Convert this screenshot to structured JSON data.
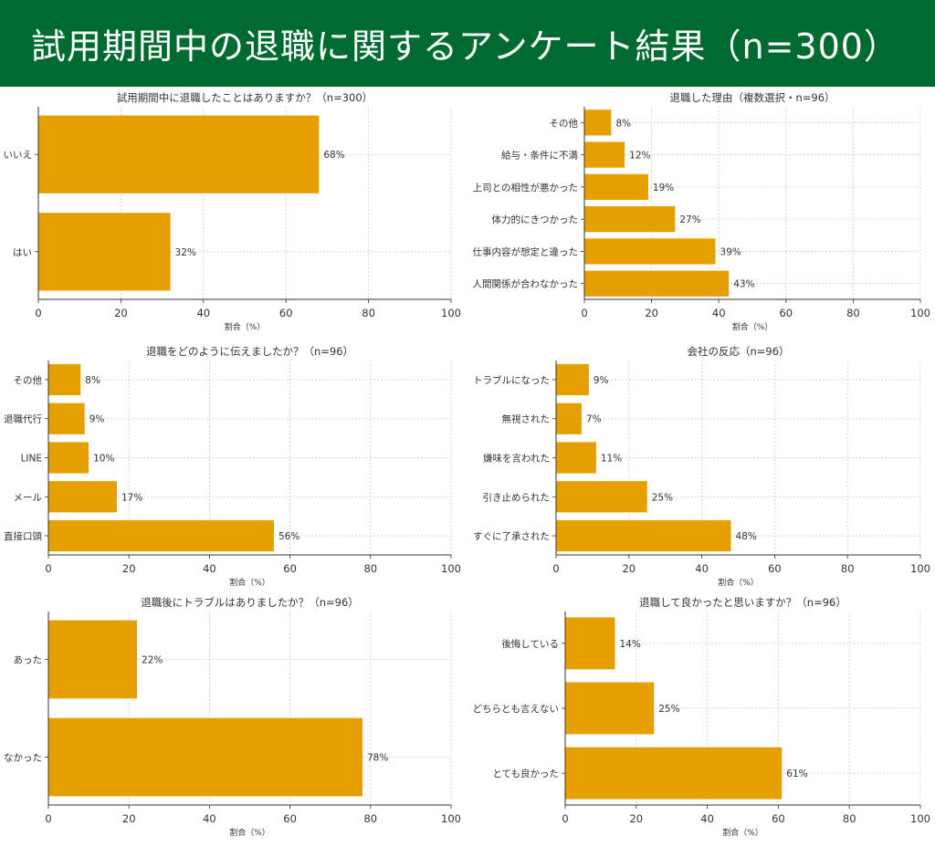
{
  "header": {
    "title": "試用期間中の退職に関するアンケート結果（n=300）"
  },
  "colors": {
    "header_bg": "#006b31",
    "bar": "#e5a000"
  },
  "chart_data": [
    {
      "type": "bar",
      "orientation": "horizontal",
      "title": "試用期間中に退職したことはありますか？（n=300）",
      "categories": [
        "いいえ",
        "はい"
      ],
      "values": [
        68,
        32
      ],
      "value_labels": [
        "68%",
        "32%"
      ],
      "xlabel": "割合（%）",
      "xlim": [
        0,
        100
      ],
      "xticks": [
        "0",
        "20",
        "40",
        "60",
        "80",
        "100"
      ],
      "grid": true
    },
    {
      "type": "bar",
      "orientation": "horizontal",
      "title": "退職した理由（複数選択・n=96）",
      "categories": [
        "その他",
        "給与・条件に不満",
        "上司との相性が悪かった",
        "体力的にきつかった",
        "仕事内容が想定と違った",
        "人間関係が合わなかった"
      ],
      "values": [
        8,
        12,
        19,
        27,
        39,
        43
      ],
      "value_labels": [
        "8%",
        "12%",
        "19%",
        "27%",
        "39%",
        "43%"
      ],
      "xlabel": "割合（%）",
      "xlim": [
        0,
        100
      ],
      "xticks": [
        "0",
        "20",
        "40",
        "60",
        "80",
        "100"
      ],
      "grid": true
    },
    {
      "type": "bar",
      "orientation": "horizontal",
      "title": "退職をどのように伝えましたか？（n=96）",
      "categories": [
        "その他",
        "退職代行",
        "LINE",
        "メール",
        "直接口頭"
      ],
      "values": [
        8,
        9,
        10,
        17,
        56
      ],
      "value_labels": [
        "8%",
        "9%",
        "10%",
        "17%",
        "56%"
      ],
      "xlabel": "割合（%）",
      "xlim": [
        0,
        100
      ],
      "xticks": [
        "0",
        "20",
        "40",
        "60",
        "80",
        "100"
      ],
      "grid": true
    },
    {
      "type": "bar",
      "orientation": "horizontal",
      "title": "会社の反応（n=96）",
      "categories": [
        "トラブルになった",
        "無視された",
        "嫌味を言われた",
        "引き止められた",
        "すぐに了承された"
      ],
      "values": [
        9,
        7,
        11,
        25,
        48
      ],
      "value_labels": [
        "9%",
        "7%",
        "11%",
        "25%",
        "48%"
      ],
      "xlabel": "割合（%）",
      "xlim": [
        0,
        100
      ],
      "xticks": [
        "0",
        "20",
        "40",
        "60",
        "80",
        "100"
      ],
      "grid": true
    },
    {
      "type": "bar",
      "orientation": "horizontal",
      "title": "退職後にトラブルはありましたか？（n=96）",
      "categories": [
        "あった",
        "なかった"
      ],
      "values": [
        22,
        78
      ],
      "value_labels": [
        "22%",
        "78%"
      ],
      "xlabel": "割合（%）",
      "xlim": [
        0,
        100
      ],
      "xticks": [
        "0",
        "20",
        "40",
        "60",
        "80",
        "100"
      ],
      "grid": true
    },
    {
      "type": "bar",
      "orientation": "horizontal",
      "title": "退職して良かったと思いますか？（n=96）",
      "categories": [
        "後悔している",
        "どちらとも言えない",
        "とても良かった"
      ],
      "values": [
        14,
        25,
        61
      ],
      "value_labels": [
        "14%",
        "25%",
        "61%"
      ],
      "xlabel": "割合（%）",
      "xlim": [
        0,
        100
      ],
      "xticks": [
        "0",
        "20",
        "40",
        "60",
        "80",
        "100"
      ],
      "grid": true
    }
  ]
}
